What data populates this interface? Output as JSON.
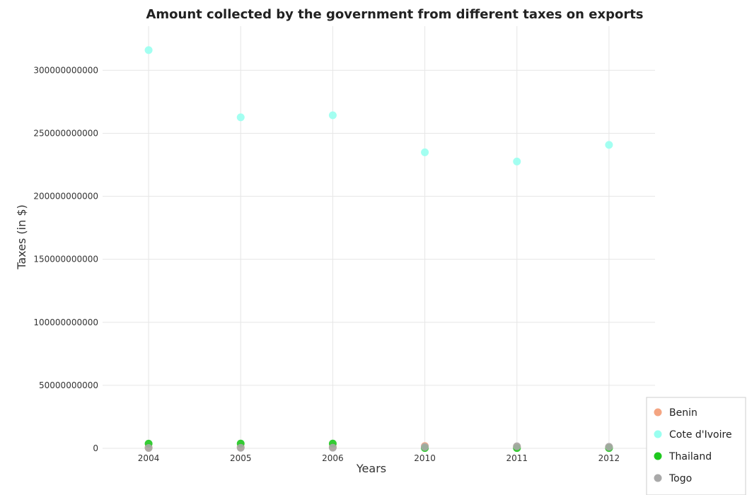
{
  "chart_data": {
    "type": "scatter",
    "title": "Amount collected by the government from different taxes on exports",
    "xlabel": "Years",
    "ylabel": "Taxes (in $)",
    "categories": [
      "2004",
      "2005",
      "2006",
      "2010",
      "2011",
      "2012"
    ],
    "ylim": [
      0,
      335000000000
    ],
    "yticks": [
      0,
      50000000000,
      100000000000,
      150000000000,
      200000000000,
      250000000000,
      300000000000
    ],
    "ytick_labels": [
      "0",
      "50000000000",
      "100000000000",
      "150000000000",
      "200000000000",
      "250000000000",
      "300000000000"
    ],
    "grid": true,
    "legend_position": "bottom-right",
    "series": [
      {
        "name": "Benin",
        "color": "#f4a582",
        "values": [
          600000000,
          900000000,
          1000000000,
          1800000000,
          1200000000,
          900000000
        ]
      },
      {
        "name": "Cote d'Ivoire",
        "color": "#99fff0",
        "values": [
          316000000000,
          262700000000,
          264300000000,
          234900000000,
          227600000000,
          240800000000
        ]
      },
      {
        "name": "Thailand",
        "color": "#1ec81e",
        "values": [
          3700000000,
          3800000000,
          3800000000,
          200000000,
          200000000,
          200000000
        ]
      },
      {
        "name": "Togo",
        "color": "#a9a9a9",
        "values": [
          300000000,
          400000000,
          500000000,
          1100000000,
          1600000000,
          1200000000
        ]
      }
    ]
  }
}
